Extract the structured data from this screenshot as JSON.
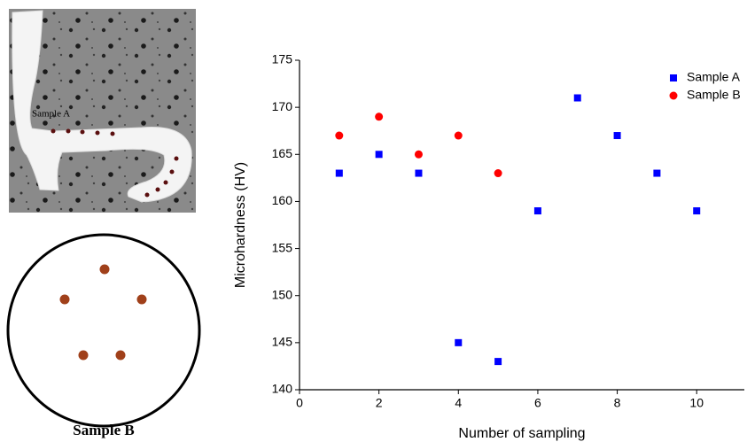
{
  "left_panel": {
    "micrograph_label": "Sample A",
    "diagram_label": "Sample B"
  },
  "chart_data": {
    "type": "scatter",
    "x_label": "Number of sampling",
    "y_label": "Microhardness (HV)",
    "xlim": [
      0,
      11.2
    ],
    "xticks": [
      0,
      2,
      4,
      6,
      8,
      10
    ],
    "ylim": [
      140,
      175
    ],
    "yticks": [
      140,
      145,
      150,
      155,
      160,
      165,
      170,
      175
    ],
    "legend": "upper right",
    "series": [
      {
        "name": "Sample A",
        "color": "#0000ff",
        "marker": "square",
        "x": [
          1,
          2,
          3,
          4,
          5,
          6,
          7,
          8,
          9,
          10
        ],
        "values": [
          163,
          165,
          163,
          145,
          143,
          159,
          171,
          167,
          163,
          159
        ]
      },
      {
        "name": "Sample B",
        "color": "#ff0000",
        "marker": "circle",
        "x": [
          1,
          2,
          3,
          4,
          5
        ],
        "values": [
          167,
          169,
          165,
          167,
          163
        ]
      }
    ]
  }
}
